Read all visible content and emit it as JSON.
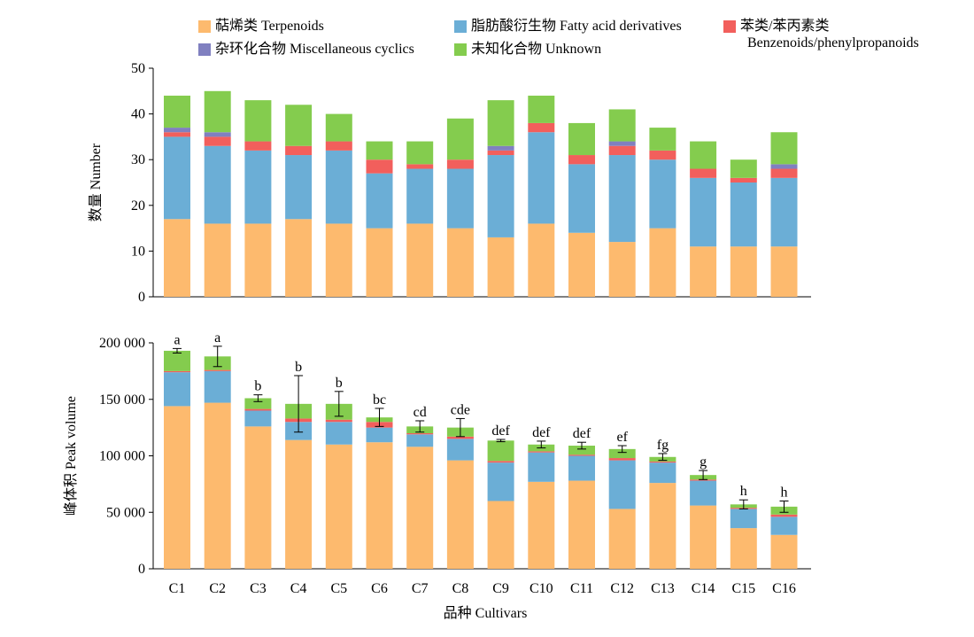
{
  "legend": [
    {
      "key": "terpenoids",
      "label": "萜烯类 Terpenoids",
      "color": "#FDBA6E"
    },
    {
      "key": "fatty",
      "label": "脂肪酸衍生物 Fatty acid derivatives",
      "color": "#6BAED6"
    },
    {
      "key": "benzenoids",
      "label": "苯类/苯丙素类",
      "label2": "Benzenoids/phenylpropanoids",
      "color": "#F25F5C"
    },
    {
      "key": "misc",
      "label": "杂环化合物 Miscellaneous cyclics",
      "color": "#8080C0"
    },
    {
      "key": "unknown",
      "label": "未知化合物 Unknown",
      "color": "#84CC4E"
    }
  ],
  "xlabel": "品种 Cultivars",
  "chart_data": [
    {
      "type": "bar",
      "stacked": true,
      "ylabel": "数量 Number",
      "ylim": [
        0,
        50
      ],
      "yticks": [
        "0",
        "10",
        "20",
        "30",
        "40",
        "50"
      ],
      "categories": [
        "C1",
        "C2",
        "C3",
        "C4",
        "C5",
        "C6",
        "C7",
        "C8",
        "C9",
        "C10",
        "C11",
        "C12",
        "C13",
        "C14",
        "C15",
        "C16"
      ],
      "series": [
        {
          "name": "萜烯类 Terpenoids",
          "color": "#FDBA6E",
          "values": [
            17,
            16,
            16,
            17,
            16,
            15,
            16,
            15,
            13,
            16,
            14,
            12,
            15,
            11,
            11,
            11
          ]
        },
        {
          "name": "脂肪酸衍生物 Fatty acid derivatives",
          "color": "#6BAED6",
          "values": [
            18,
            17,
            16,
            14,
            16,
            12,
            12,
            13,
            18,
            20,
            15,
            19,
            15,
            15,
            14,
            15
          ]
        },
        {
          "name": "苯类/苯丙素类 Benzenoids/phenylpropanoids",
          "color": "#F25F5C",
          "values": [
            1,
            2,
            2,
            2,
            2,
            3,
            1,
            2,
            1,
            2,
            2,
            2,
            2,
            2,
            1,
            2
          ]
        },
        {
          "name": "杂环化合物 Miscellaneous cyclics",
          "color": "#8080C0",
          "values": [
            1,
            1,
            0,
            0,
            0,
            0,
            0,
            0,
            1,
            0,
            0,
            1,
            0,
            0,
            0,
            1
          ]
        },
        {
          "name": "未知化合物 Unknown",
          "color": "#84CC4E",
          "values": [
            7,
            9,
            9,
            9,
            6,
            4,
            5,
            9,
            10,
            6,
            7,
            7,
            5,
            6,
            4,
            7
          ]
        }
      ]
    },
    {
      "type": "bar",
      "stacked": true,
      "ylabel": "峰体积 Peak volume",
      "ylim": [
        0,
        200000
      ],
      "yticks": [
        "0",
        "50 000",
        "100 000",
        "150 000",
        "200 000"
      ],
      "categories": [
        "C1",
        "C2",
        "C3",
        "C4",
        "C5",
        "C6",
        "C7",
        "C8",
        "C9",
        "C10",
        "C11",
        "C12",
        "C13",
        "C14",
        "C15",
        "C16"
      ],
      "series": [
        {
          "name": "萜烯类 Terpenoids",
          "color": "#FDBA6E",
          "values": [
            144000,
            147000,
            126000,
            114000,
            110000,
            112000,
            108000,
            96000,
            60000,
            77000,
            78000,
            53000,
            76000,
            56000,
            36000,
            30000
          ]
        },
        {
          "name": "脂肪酸衍生物 Fatty acid derivatives",
          "color": "#6BAED6",
          "values": [
            30000,
            28000,
            14000,
            16000,
            20000,
            13000,
            11000,
            19000,
            34000,
            26000,
            22000,
            43000,
            18000,
            22000,
            17000,
            16000
          ]
        },
        {
          "name": "苯类/苯丙素类 Benzenoids/phenylpropanoids",
          "color": "#F25F5C",
          "values": [
            1000,
            1000,
            1500,
            3000,
            2000,
            5000,
            1000,
            2000,
            1500,
            1000,
            1000,
            2000,
            1000,
            1000,
            1000,
            2000
          ]
        },
        {
          "name": "杂环化合物 Miscellaneous cyclics",
          "color": "#8080C0",
          "values": [
            0,
            0,
            0,
            0,
            0,
            0,
            0,
            0,
            0,
            0,
            0,
            0,
            0,
            0,
            0,
            0
          ]
        },
        {
          "name": "未知化合物 Unknown",
          "color": "#84CC4E",
          "values": [
            18000,
            12000,
            9500,
            13000,
            14000,
            4000,
            6000,
            8000,
            18000,
            6000,
            8000,
            8000,
            4000,
            4000,
            3000,
            7000
          ]
        }
      ],
      "error": [
        2000,
        9000,
        3000,
        25000,
        11000,
        8000,
        5000,
        8000,
        1000,
        3000,
        3000,
        3000,
        3000,
        4000,
        4000,
        5000
      ],
      "annotations": [
        "a",
        "a",
        "b",
        "b",
        "b",
        "bc",
        "cd",
        "cde",
        "def",
        "def",
        "def",
        "ef",
        "fg",
        "g",
        "h",
        "h"
      ]
    }
  ]
}
